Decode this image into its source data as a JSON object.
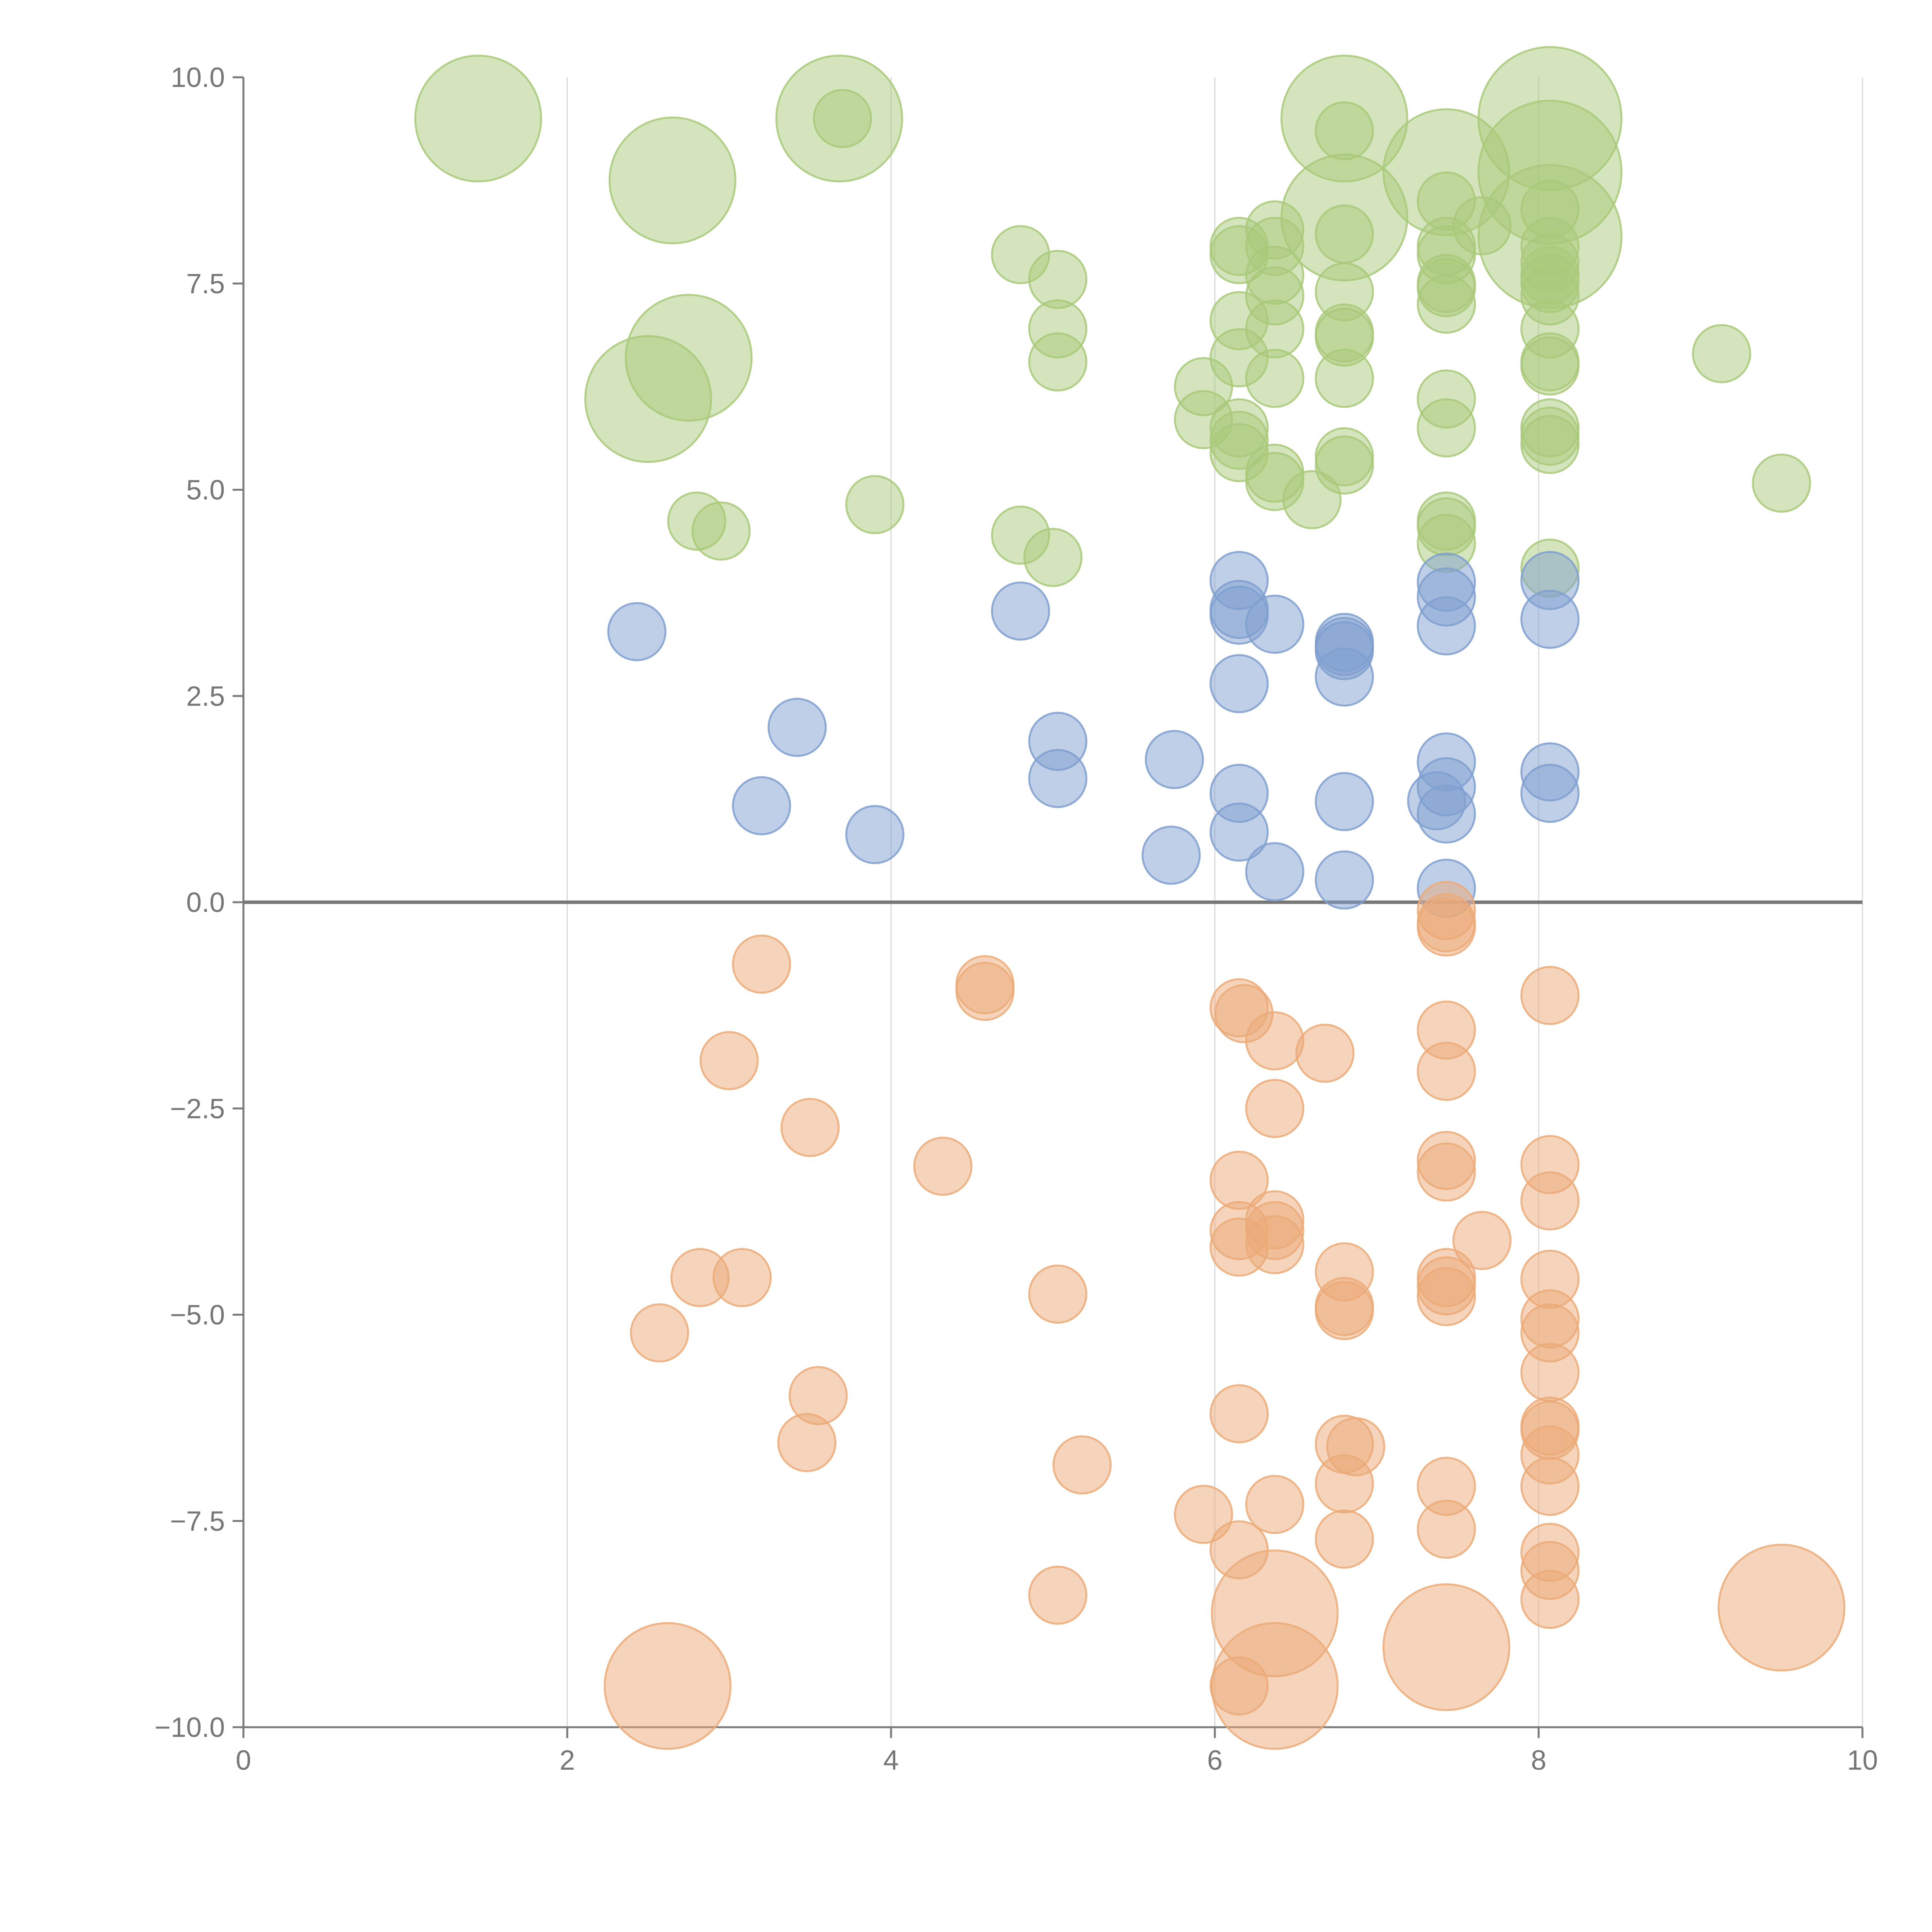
{
  "chart_data": {
    "type": "scatter",
    "title": "",
    "xlabel": "",
    "ylabel": "",
    "xlim": [
      0,
      10
    ],
    "ylim": [
      -10,
      10
    ],
    "x_ticks": [
      "0",
      "2",
      "4",
      "6",
      "8",
      "10"
    ],
    "y_ticks": [
      "−10.0",
      "−7.5",
      "−5.0",
      "−2.5",
      "0.0",
      "2.5",
      "5.0",
      "7.5",
      "10.0"
    ],
    "grid": "vertical",
    "reference_line_y": 0,
    "colors": {
      "green": "#a9c97a",
      "blue": "#7f9fcf",
      "orange": "#ebaa78"
    },
    "series": [
      {
        "color": "green",
        "points": [
          {
            "x": 1.45,
            "y": 9.5,
            "r": 2.2
          },
          {
            "x": 3.68,
            "y": 9.5,
            "r": 2.2
          },
          {
            "x": 3.7,
            "y": 9.5,
            "r": 1.0
          },
          {
            "x": 6.8,
            "y": 9.5,
            "r": 2.2
          },
          {
            "x": 6.8,
            "y": 9.35,
            "r": 1.0
          },
          {
            "x": 8.07,
            "y": 9.5,
            "r": 2.5
          },
          {
            "x": 2.65,
            "y": 8.75,
            "r": 2.2
          },
          {
            "x": 7.43,
            "y": 8.85,
            "r": 2.2
          },
          {
            "x": 8.07,
            "y": 8.85,
            "r": 2.5
          },
          {
            "x": 7.43,
            "y": 8.5,
            "r": 1.0
          },
          {
            "x": 8.07,
            "y": 8.4,
            "r": 1.0
          },
          {
            "x": 6.8,
            "y": 8.3,
            "r": 2.2
          },
          {
            "x": 7.65,
            "y": 8.2,
            "r": 1.0
          },
          {
            "x": 6.37,
            "y": 8.15,
            "r": 1.0
          },
          {
            "x": 6.8,
            "y": 8.1,
            "r": 1.0
          },
          {
            "x": 8.07,
            "y": 8.07,
            "r": 2.5
          },
          {
            "x": 8.07,
            "y": 7.95,
            "r": 1.0
          },
          {
            "x": 6.15,
            "y": 7.95,
            "r": 1.0
          },
          {
            "x": 6.37,
            "y": 7.95,
            "r": 1.0
          },
          {
            "x": 7.43,
            "y": 7.95,
            "r": 1.0
          },
          {
            "x": 4.8,
            "y": 7.85,
            "r": 1.0
          },
          {
            "x": 6.15,
            "y": 7.85,
            "r": 1.0
          },
          {
            "x": 7.43,
            "y": 7.85,
            "r": 1.0
          },
          {
            "x": 8.07,
            "y": 7.75,
            "r": 1.0
          },
          {
            "x": 8.07,
            "y": 7.6,
            "r": 1.0
          },
          {
            "x": 5.03,
            "y": 7.55,
            "r": 1.0
          },
          {
            "x": 6.37,
            "y": 7.6,
            "r": 1.0
          },
          {
            "x": 7.43,
            "y": 7.5,
            "r": 1.0
          },
          {
            "x": 7.43,
            "y": 7.45,
            "r": 1.0
          },
          {
            "x": 8.07,
            "y": 7.5,
            "r": 1.0
          },
          {
            "x": 6.8,
            "y": 7.4,
            "r": 1.0
          },
          {
            "x": 6.37,
            "y": 7.35,
            "r": 1.0
          },
          {
            "x": 8.07,
            "y": 7.35,
            "r": 1.0
          },
          {
            "x": 7.43,
            "y": 7.25,
            "r": 1.0
          },
          {
            "x": 6.15,
            "y": 7.05,
            "r": 1.0
          },
          {
            "x": 5.03,
            "y": 6.95,
            "r": 1.0
          },
          {
            "x": 8.07,
            "y": 6.95,
            "r": 1.0
          },
          {
            "x": 6.37,
            "y": 6.95,
            "r": 1.0
          },
          {
            "x": 6.8,
            "y": 6.9,
            "r": 1.0
          },
          {
            "x": 6.8,
            "y": 6.85,
            "r": 1.0
          },
          {
            "x": 2.75,
            "y": 6.6,
            "r": 2.2
          },
          {
            "x": 6.15,
            "y": 6.6,
            "r": 1.0
          },
          {
            "x": 9.13,
            "y": 6.65,
            "r": 1.0
          },
          {
            "x": 5.03,
            "y": 6.55,
            "r": 1.0
          },
          {
            "x": 8.07,
            "y": 6.55,
            "r": 1.0
          },
          {
            "x": 8.07,
            "y": 6.5,
            "r": 1.0
          },
          {
            "x": 6.37,
            "y": 6.35,
            "r": 1.0
          },
          {
            "x": 6.8,
            "y": 6.35,
            "r": 1.0
          },
          {
            "x": 5.93,
            "y": 6.25,
            "r": 1.0
          },
          {
            "x": 2.5,
            "y": 6.1,
            "r": 2.2
          },
          {
            "x": 7.43,
            "y": 6.1,
            "r": 1.0
          },
          {
            "x": 5.93,
            "y": 5.85,
            "r": 1.0
          },
          {
            "x": 6.15,
            "y": 5.75,
            "r": 1.0
          },
          {
            "x": 7.43,
            "y": 5.75,
            "r": 1.0
          },
          {
            "x": 8.07,
            "y": 5.75,
            "r": 1.0
          },
          {
            "x": 8.07,
            "y": 5.65,
            "r": 1.0
          },
          {
            "x": 6.15,
            "y": 5.6,
            "r": 1.0
          },
          {
            "x": 8.07,
            "y": 5.55,
            "r": 1.0
          },
          {
            "x": 6.15,
            "y": 5.45,
            "r": 1.0
          },
          {
            "x": 6.8,
            "y": 5.4,
            "r": 1.0
          },
          {
            "x": 6.8,
            "y": 5.3,
            "r": 1.0
          },
          {
            "x": 6.37,
            "y": 5.2,
            "r": 1.0
          },
          {
            "x": 6.37,
            "y": 5.1,
            "r": 1.0
          },
          {
            "x": 9.5,
            "y": 5.08,
            "r": 1.0
          },
          {
            "x": 6.6,
            "y": 4.88,
            "r": 1.0
          },
          {
            "x": 3.9,
            "y": 4.82,
            "r": 1.0
          },
          {
            "x": 7.43,
            "y": 4.62,
            "r": 1.0
          },
          {
            "x": 2.8,
            "y": 4.62,
            "r": 1.0
          },
          {
            "x": 7.43,
            "y": 4.55,
            "r": 1.0
          },
          {
            "x": 2.95,
            "y": 4.5,
            "r": 1.0
          },
          {
            "x": 4.8,
            "y": 4.45,
            "r": 1.0
          },
          {
            "x": 7.43,
            "y": 4.35,
            "r": 1.0
          },
          {
            "x": 5.0,
            "y": 4.18,
            "r": 1.0
          },
          {
            "x": 8.07,
            "y": 4.05,
            "r": 1.0
          }
        ]
      },
      {
        "color": "blue",
        "points": [
          {
            "x": 6.15,
            "y": 3.9,
            "r": 1.0
          },
          {
            "x": 7.43,
            "y": 3.88,
            "r": 1.0
          },
          {
            "x": 8.07,
            "y": 3.9,
            "r": 1.0
          },
          {
            "x": 7.43,
            "y": 3.7,
            "r": 1.0
          },
          {
            "x": 6.15,
            "y": 3.55,
            "r": 1.0
          },
          {
            "x": 4.8,
            "y": 3.53,
            "r": 1.0
          },
          {
            "x": 6.15,
            "y": 3.48,
            "r": 1.0
          },
          {
            "x": 8.07,
            "y": 3.43,
            "r": 1.0
          },
          {
            "x": 6.37,
            "y": 3.37,
            "r": 1.0
          },
          {
            "x": 7.43,
            "y": 3.35,
            "r": 1.0
          },
          {
            "x": 2.43,
            "y": 3.28,
            "r": 1.0
          },
          {
            "x": 6.8,
            "y": 3.15,
            "r": 1.0
          },
          {
            "x": 6.8,
            "y": 3.1,
            "r": 1.0
          },
          {
            "x": 6.8,
            "y": 3.05,
            "r": 1.0
          },
          {
            "x": 6.8,
            "y": 2.73,
            "r": 1.0
          },
          {
            "x": 6.15,
            "y": 2.65,
            "r": 1.0
          },
          {
            "x": 3.42,
            "y": 2.12,
            "r": 1.0
          },
          {
            "x": 5.03,
            "y": 1.95,
            "r": 1.0
          },
          {
            "x": 5.75,
            "y": 1.73,
            "r": 1.0
          },
          {
            "x": 7.43,
            "y": 1.7,
            "r": 1.0
          },
          {
            "x": 8.07,
            "y": 1.58,
            "r": 1.0
          },
          {
            "x": 5.03,
            "y": 1.5,
            "r": 1.0
          },
          {
            "x": 7.43,
            "y": 1.4,
            "r": 1.0
          },
          {
            "x": 6.15,
            "y": 1.32,
            "r": 1.0
          },
          {
            "x": 8.07,
            "y": 1.32,
            "r": 1.0
          },
          {
            "x": 6.8,
            "y": 1.22,
            "r": 1.0
          },
          {
            "x": 7.37,
            "y": 1.23,
            "r": 1.0
          },
          {
            "x": 3.2,
            "y": 1.17,
            "r": 1.0
          },
          {
            "x": 7.43,
            "y": 1.07,
            "r": 1.0
          },
          {
            "x": 6.15,
            "y": 0.85,
            "r": 1.0
          },
          {
            "x": 3.9,
            "y": 0.82,
            "r": 1.0
          },
          {
            "x": 5.73,
            "y": 0.57,
            "r": 1.0
          },
          {
            "x": 6.37,
            "y": 0.37,
            "r": 1.0
          },
          {
            "x": 6.8,
            "y": 0.27,
            "r": 1.0
          },
          {
            "x": 7.43,
            "y": 0.17,
            "r": 1.0
          }
        ]
      },
      {
        "color": "orange",
        "points": [
          {
            "x": 7.43,
            "y": -0.1,
            "r": 1.0
          },
          {
            "x": 7.43,
            "y": -0.3,
            "r": 1.0
          },
          {
            "x": 7.43,
            "y": -0.25,
            "r": 1.0
          },
          {
            "x": 3.2,
            "y": -0.75,
            "r": 1.0
          },
          {
            "x": 4.58,
            "y": -1.0,
            "r": 1.0
          },
          {
            "x": 4.58,
            "y": -1.08,
            "r": 1.0
          },
          {
            "x": 8.07,
            "y": -1.13,
            "r": 1.0
          },
          {
            "x": 6.15,
            "y": -1.28,
            "r": 1.0
          },
          {
            "x": 6.18,
            "y": -1.35,
            "r": 1.0
          },
          {
            "x": 7.43,
            "y": -1.55,
            "r": 1.0
          },
          {
            "x": 6.37,
            "y": -1.68,
            "r": 1.0
          },
          {
            "x": 6.68,
            "y": -1.83,
            "r": 1.0
          },
          {
            "x": 3.0,
            "y": -1.92,
            "r": 1.0
          },
          {
            "x": 7.43,
            "y": -2.05,
            "r": 1.0
          },
          {
            "x": 6.37,
            "y": -2.5,
            "r": 1.0
          },
          {
            "x": 3.5,
            "y": -2.73,
            "r": 1.0
          },
          {
            "x": 7.43,
            "y": -3.13,
            "r": 1.0
          },
          {
            "x": 8.07,
            "y": -3.18,
            "r": 1.0
          },
          {
            "x": 4.32,
            "y": -3.2,
            "r": 1.0
          },
          {
            "x": 7.43,
            "y": -3.27,
            "r": 1.0
          },
          {
            "x": 6.15,
            "y": -3.37,
            "r": 1.0
          },
          {
            "x": 8.07,
            "y": -3.62,
            "r": 1.0
          },
          {
            "x": 6.37,
            "y": -3.85,
            "r": 1.0
          },
          {
            "x": 6.15,
            "y": -3.98,
            "r": 1.0
          },
          {
            "x": 6.37,
            "y": -3.98,
            "r": 1.0
          },
          {
            "x": 7.65,
            "y": -4.1,
            "r": 1.0
          },
          {
            "x": 6.15,
            "y": -4.18,
            "r": 1.0
          },
          {
            "x": 6.37,
            "y": -4.15,
            "r": 1.0
          },
          {
            "x": 6.8,
            "y": -4.48,
            "r": 1.0
          },
          {
            "x": 7.43,
            "y": -4.55,
            "r": 1.0
          },
          {
            "x": 2.82,
            "y": -4.55,
            "r": 1.0
          },
          {
            "x": 3.08,
            "y": -4.55,
            "r": 1.0
          },
          {
            "x": 8.07,
            "y": -4.57,
            "r": 1.0
          },
          {
            "x": 7.43,
            "y": -4.65,
            "r": 1.0
          },
          {
            "x": 5.03,
            "y": -4.75,
            "r": 1.0
          },
          {
            "x": 7.43,
            "y": -4.78,
            "r": 1.0
          },
          {
            "x": 6.8,
            "y": -4.9,
            "r": 1.0
          },
          {
            "x": 6.8,
            "y": -4.95,
            "r": 1.0
          },
          {
            "x": 8.07,
            "y": -5.05,
            "r": 1.0
          },
          {
            "x": 2.57,
            "y": -5.22,
            "r": 1.0
          },
          {
            "x": 8.07,
            "y": -5.22,
            "r": 1.0
          },
          {
            "x": 8.07,
            "y": -5.7,
            "r": 1.0
          },
          {
            "x": 3.55,
            "y": -5.98,
            "r": 1.0
          },
          {
            "x": 6.15,
            "y": -6.2,
            "r": 1.0
          },
          {
            "x": 8.07,
            "y": -6.35,
            "r": 1.0
          },
          {
            "x": 8.07,
            "y": -6.4,
            "r": 1.0
          },
          {
            "x": 3.48,
            "y": -6.55,
            "r": 1.0
          },
          {
            "x": 6.8,
            "y": -6.57,
            "r": 1.0
          },
          {
            "x": 6.87,
            "y": -6.6,
            "r": 1.0
          },
          {
            "x": 8.07,
            "y": -6.7,
            "r": 1.0
          },
          {
            "x": 5.18,
            "y": -6.82,
            "r": 1.0
          },
          {
            "x": 6.8,
            "y": -7.05,
            "r": 1.0
          },
          {
            "x": 7.43,
            "y": -7.08,
            "r": 1.0
          },
          {
            "x": 8.07,
            "y": -7.08,
            "r": 1.0
          },
          {
            "x": 6.37,
            "y": -7.3,
            "r": 1.0
          },
          {
            "x": 5.93,
            "y": -7.42,
            "r": 1.0
          },
          {
            "x": 7.43,
            "y": -7.6,
            "r": 1.0
          },
          {
            "x": 6.8,
            "y": -7.72,
            "r": 1.0
          },
          {
            "x": 6.15,
            "y": -7.85,
            "r": 1.0
          },
          {
            "x": 8.07,
            "y": -7.88,
            "r": 1.0
          },
          {
            "x": 8.07,
            "y": -8.1,
            "r": 1.0
          },
          {
            "x": 5.03,
            "y": -8.4,
            "r": 1.0
          },
          {
            "x": 8.07,
            "y": -8.45,
            "r": 1.0
          },
          {
            "x": 9.5,
            "y": -8.55,
            "r": 2.2
          },
          {
            "x": 6.37,
            "y": -8.62,
            "r": 2.2
          },
          {
            "x": 7.43,
            "y": -9.03,
            "r": 2.2
          },
          {
            "x": 2.62,
            "y": -9.5,
            "r": 2.2
          },
          {
            "x": 6.15,
            "y": -9.5,
            "r": 1.0
          },
          {
            "x": 6.37,
            "y": -9.5,
            "r": 2.2
          }
        ]
      }
    ]
  }
}
